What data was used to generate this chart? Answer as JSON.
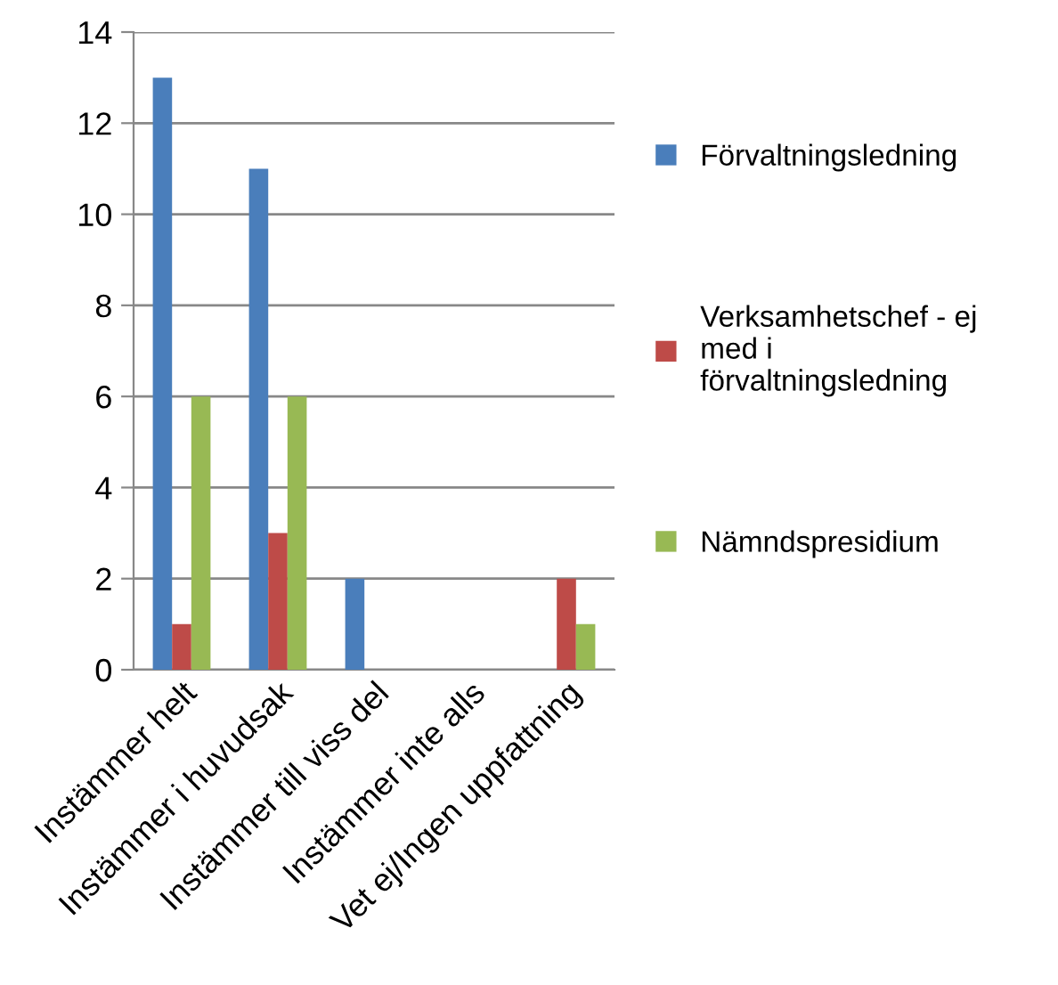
{
  "chart_data": {
    "type": "bar",
    "categories": [
      "Instämmer helt",
      "Instämmer i huvudsak",
      "Instämmer till viss del",
      "Instämmer inte alls",
      "Vet ej/Ingen uppfattning"
    ],
    "series": [
      {
        "name": "Förvaltningsledning",
        "color": "#4a7ebb",
        "values": [
          13,
          11,
          2,
          0,
          0
        ]
      },
      {
        "name": "Verksamhetschef - ej\nmed i\nförvaltningsledning",
        "color": "#be4b48",
        "values": [
          1,
          3,
          0,
          0,
          2
        ]
      },
      {
        "name": "Nämndspresidium",
        "color": "#98b954",
        "values": [
          6,
          6,
          0,
          0,
          1
        ]
      }
    ],
    "ylim": [
      0,
      14
    ],
    "yticks": [
      0,
      2,
      4,
      6,
      8,
      10,
      12,
      14
    ],
    "grid": "y",
    "legend": "right"
  }
}
